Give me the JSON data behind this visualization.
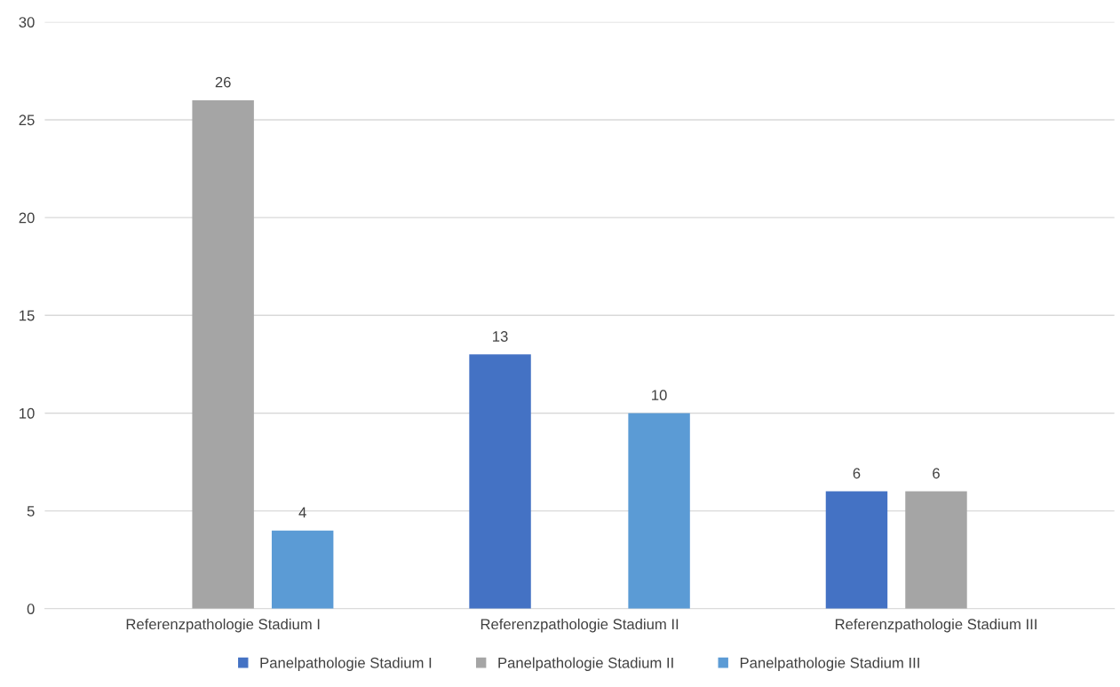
{
  "chart_data": {
    "type": "bar",
    "categories": [
      "Referenzpathologie Stadium I",
      "Referenzpathologie Stadium II",
      "Referenzpathologie Stadium III"
    ],
    "series": [
      {
        "name": "Panelpathologie Stadium I",
        "color": "#4472c4",
        "values": [
          null,
          13,
          6
        ]
      },
      {
        "name": "Panelpathologie Stadium II",
        "color": "#a5a5a5",
        "values": [
          26,
          null,
          6
        ]
      },
      {
        "name": "Panelpathologie Stadium III",
        "color": "#5b9bd5",
        "values": [
          4,
          10,
          null
        ]
      }
    ],
    "ylim": [
      0,
      30
    ],
    "yticks": [
      0,
      5,
      10,
      15,
      20,
      25,
      30
    ],
    "grid": "y",
    "legend": "bottom",
    "data_labels": true
  }
}
